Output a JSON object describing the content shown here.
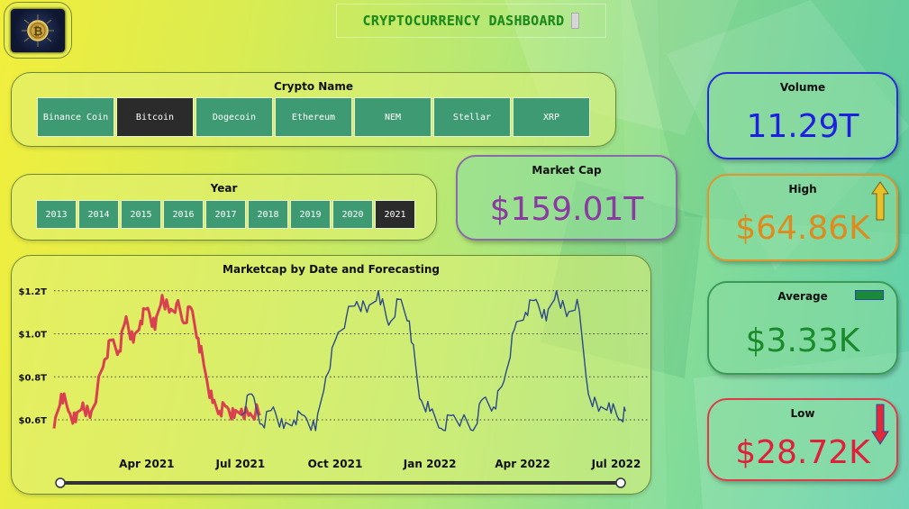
{
  "header": {
    "title": "CRYPTOCURRENCY DASHBOARD"
  },
  "logo": {
    "icon": "bitcoin-icon"
  },
  "crypto_slicer": {
    "label": "Crypto Name",
    "options": [
      "Binance Coin",
      "Bitcoin",
      "Dogecoin",
      "Ethereum",
      "NEM",
      "Stellar",
      "XRP"
    ],
    "selected": "Bitcoin"
  },
  "year_slicer": {
    "label": "Year",
    "options": [
      "2013",
      "2014",
      "2015",
      "2016",
      "2017",
      "2018",
      "2019",
      "2020",
      "2021"
    ],
    "selected": "2021"
  },
  "kpis": {
    "market_cap": {
      "label": "Market Cap",
      "value": "$159.01T",
      "color": "#8a3aa0"
    },
    "volume": {
      "label": "Volume",
      "value": "11.29T",
      "color": "#1f1fe0"
    },
    "high": {
      "label": "High",
      "value": "$64.86K",
      "color": "#e08a1e",
      "icon": "arrow-up-icon"
    },
    "average": {
      "label": "Average",
      "value": "$3.33K",
      "color": "#1a8a2a",
      "icon": "flat-bar-icon"
    },
    "low": {
      "label": "Low",
      "value": "$28.72K",
      "color": "#e0203a",
      "icon": "arrow-down-icon"
    }
  },
  "chart_data": {
    "type": "line",
    "title": "Marketcap by Date and Forecasting",
    "xlabel": "",
    "ylabel": "",
    "y_ticks": [
      "$0.6T",
      "$0.8T",
      "$1.0T",
      "$1.2T"
    ],
    "y_tick_values": [
      0.6,
      0.8,
      1.0,
      1.2
    ],
    "ylim": [
      0.55,
      1.22
    ],
    "x_ticks": [
      "Apr 2021",
      "Jul 2021",
      "Oct 2021",
      "Jan 2022",
      "Apr 2022",
      "Jul 2022"
    ],
    "x_tick_values": [
      "2021-04-01",
      "2021-07-01",
      "2021-10-01",
      "2022-01-01",
      "2022-04-01",
      "2022-07-01"
    ],
    "xlim": [
      "2021-01-01",
      "2022-07-15"
    ],
    "grid": true,
    "series": [
      {
        "role": "actual",
        "color": "#d94050",
        "x": [
          "2021-01-01",
          "2021-01-08",
          "2021-01-15",
          "2021-01-22",
          "2021-01-29",
          "2021-02-05",
          "2021-02-12",
          "2021-02-19",
          "2021-02-26",
          "2021-03-05",
          "2021-03-12",
          "2021-03-19",
          "2021-03-26",
          "2021-04-02",
          "2021-04-09",
          "2021-04-16",
          "2021-04-23",
          "2021-04-30",
          "2021-05-07",
          "2021-05-14",
          "2021-05-21",
          "2021-05-28",
          "2021-06-04",
          "2021-06-11",
          "2021-06-18",
          "2021-06-25",
          "2021-07-02",
          "2021-07-09",
          "2021-07-16",
          "2021-07-20"
        ],
        "values": [
          0.56,
          0.72,
          0.64,
          0.59,
          0.68,
          0.61,
          0.74,
          0.88,
          0.97,
          0.92,
          1.08,
          0.96,
          1.06,
          1.12,
          1.02,
          1.18,
          1.1,
          1.14,
          1.05,
          1.12,
          0.98,
          0.82,
          0.68,
          0.64,
          0.66,
          0.61,
          0.65,
          0.62,
          0.64,
          0.63
        ]
      },
      {
        "role": "forecast",
        "color": "#2c4a8a",
        "x": [
          "2021-07-01",
          "2021-07-12",
          "2021-07-22",
          "2021-08-02",
          "2021-08-12",
          "2021-08-22",
          "2021-09-01",
          "2021-09-12",
          "2021-09-22",
          "2021-10-02",
          "2021-10-12",
          "2021-10-22",
          "2021-11-01",
          "2021-11-12",
          "2021-11-22",
          "2021-12-02",
          "2021-12-12",
          "2021-12-22",
          "2022-01-01",
          "2022-01-12",
          "2022-01-22",
          "2022-02-01",
          "2022-02-12",
          "2022-02-22",
          "2022-03-04",
          "2022-03-14",
          "2022-03-24",
          "2022-04-04",
          "2022-04-14",
          "2022-04-24",
          "2022-05-04",
          "2022-05-14",
          "2022-05-24",
          "2022-06-04",
          "2022-06-14",
          "2022-06-24",
          "2022-07-04",
          "2022-07-10"
        ],
        "values": [
          0.62,
          0.72,
          0.58,
          0.66,
          0.56,
          0.6,
          0.62,
          0.55,
          0.8,
          0.98,
          1.08,
          1.15,
          1.1,
          1.2,
          1.04,
          1.16,
          1.06,
          0.7,
          0.64,
          0.56,
          0.62,
          0.6,
          0.55,
          0.7,
          0.66,
          0.78,
          1.02,
          1.1,
          1.16,
          1.06,
          1.2,
          1.08,
          1.16,
          0.72,
          0.64,
          0.68,
          0.6,
          0.64
        ]
      }
    ]
  }
}
